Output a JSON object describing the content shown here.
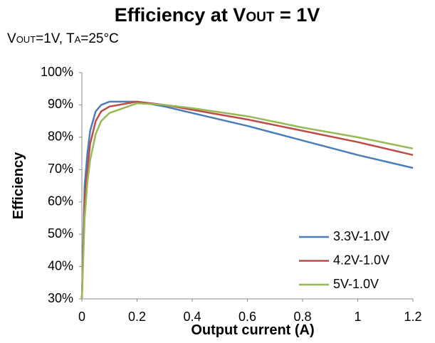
{
  "chart_data": {
    "type": "line",
    "title": [
      "Efficiency at V",
      "OUT",
      " = 1V"
    ],
    "subtitle": [
      "V",
      "OUT",
      "=1V, T",
      "A",
      "=25°C"
    ],
    "x_label": "Output current (A)",
    "y_label": "Efficiency",
    "x": [
      0,
      0.01,
      0.02,
      0.03,
      0.05,
      0.07,
      0.1,
      0.2,
      0.3,
      0.4,
      0.6,
      0.8,
      1.0,
      1.2
    ],
    "series": [
      {
        "name": "3.3V-1.0V",
        "color": "#4a7ebb",
        "values": [
          30,
          65,
          75,
          82,
          88,
          90,
          91,
          91,
          89.5,
          87.5,
          83.5,
          79,
          74.5,
          70.5
        ]
      },
      {
        "name": "4.2V-1.0V",
        "color": "#be4b48",
        "values": [
          30,
          60,
          70,
          78,
          85,
          88,
          89.5,
          91,
          90,
          88.5,
          85.5,
          82,
          78.5,
          74.5
        ]
      },
      {
        "name": "5V-1.0V",
        "color": "#98b954",
        "values": [
          30,
          55,
          66,
          73,
          81,
          85,
          87.5,
          90.5,
          90,
          89,
          86.5,
          83,
          80,
          76.5
        ]
      }
    ],
    "xlim": [
      0,
      1.2
    ],
    "xticks": [
      0,
      0.2,
      0.4,
      0.6,
      0.8,
      1,
      1.2
    ],
    "ylim": [
      30,
      100
    ],
    "yticks": [
      {
        "value": 30,
        "label": "30%"
      },
      {
        "value": 40,
        "label": "40%"
      },
      {
        "value": 50,
        "label": "50%"
      },
      {
        "value": 60,
        "label": "60%"
      },
      {
        "value": 70,
        "label": "70%"
      },
      {
        "value": 80,
        "label": "80%"
      },
      {
        "value": 90,
        "label": "90%"
      },
      {
        "value": 100,
        "label": "100%"
      }
    ],
    "grid": false,
    "legend": "lower-right"
  }
}
